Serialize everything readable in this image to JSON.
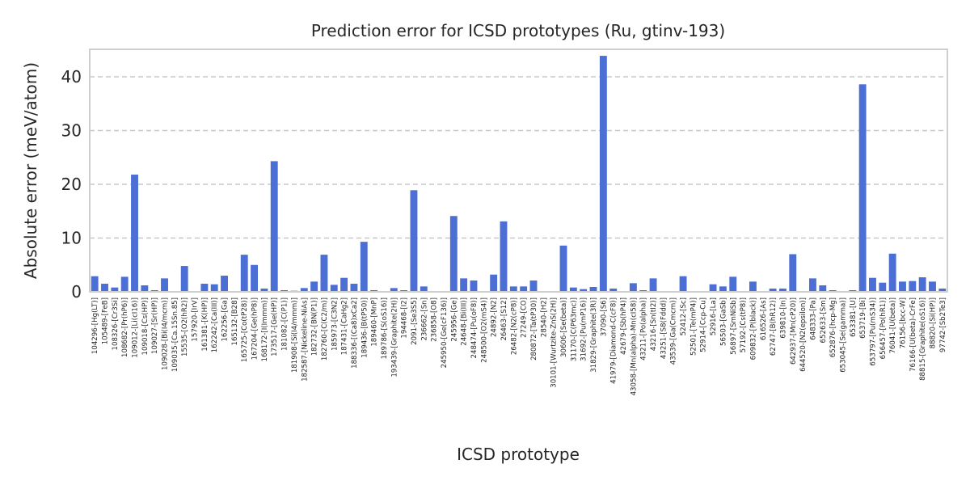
{
  "chart_data": {
    "type": "bar",
    "title": "Prediction error for ICSD prototypes (Ru, gtinv-193)",
    "xlabel": "ICSD prototype",
    "ylabel": "Absolute error (meV/atom)",
    "ylim": [
      0,
      45
    ],
    "yticks": [
      0,
      10,
      20,
      30,
      40
    ],
    "grid": "y-dashed",
    "bar_color": "#4c6fd6",
    "categories": [
      "104296-[Hg(LT)]",
      "105489-[FeB]",
      "108326-[Cr3Si]",
      "108682-[Pr(hP6)]",
      "109012-[Li(cI16)]",
      "109018-[Cs(HP)]",
      "109027-[Sr(HP)]",
      "109028-[Bi(I4/mcm)]",
      "109035-[Ca.15Sn.85]",
      "15535-[O2(hR2)]",
      "157920-[IrV]",
      "161381-[K(HP)]",
      "162242-[Ca(III)]",
      "162256-[Ga]",
      "165132-[B28]",
      "165725-[Co(tP28)]",
      "167204-[Ge(hP8)]",
      "168172-[I(Immm)]",
      "173517-[Ge(HP)]",
      "181082-[C(P1)]",
      "181908-[Si(I4/mmm)]",
      "182587-[Nickeline-NiAs]",
      "182732-[BN(P1)]",
      "182760-[C(C2/m)]",
      "185973-[C3N2]",
      "187431-[CaHg2]",
      "188336-[(Ca8)xCa2]",
      "189436-[B(tP50)]",
      "189460-[MnP]",
      "189786-[S(oS16)]",
      "193439-[Graphite(2H)]",
      "194468-[I2]",
      "2091-[Se3S5]",
      "236662-[Sn]",
      "236858-[O8]",
      "245950-[Ge(cF136)]",
      "245956-[Ge]",
      "24648-[Bi(III)]",
      "248474-[Pu(oF8)]",
      "248500-[O2(mS4)]",
      "24892-[N2]",
      "26463-[S12]",
      "26482-[N2(cP8)]",
      "27249-[CO]",
      "280872-[Ta(tP30)]",
      "28540-[H2]",
      "30101-[Wurtzite-ZnS(2H)]",
      "30606-[Se(beta)]",
      "31170-[C(P63mc)]",
      "31692-[Pu(mP16)]",
      "31829-[Graphite(3R)]",
      "37090-[S6]",
      "41979-[Diamond-C(cF8)]",
      "42679-[Sb(hP4)]",
      "43058-[Mn(alpha)-Mn(cI58)]",
      "43211-[Po(alpha)]",
      "43216-[Sn(tI2)]",
      "43251-[S8(Fddd)]",
      "43539-[Ga(Cmcm)]",
      "52412-[Sc]",
      "52501-[Te(mP4)]",
      "52914-[Ccp-Cu]",
      "52916-[La]",
      "56503-[GaSb]",
      "56897-[SmNiSb]",
      "57192-[Cs(tP8)]",
      "609832-[P(black)]",
      "616526-[As]",
      "62747-[B(hR12)]",
      "639810-[In]",
      "642937-[Mn(cP20)]",
      "644520-[N2(epsilon)]",
      "648333-[Pa]",
      "652633-[Sm]",
      "652876-[hcp-Mg]",
      "653045-[Se(gamma)]",
      "653381-[U]",
      "653719-[Bi]",
      "653797-[Pu(mS34)]",
      "656457-[Po(hR1)]",
      "76041-[U(beta)]",
      "76156-[bcc-W]",
      "76166-[U(beta)-CrFe]",
      "88815-[Graphite(oS16)]",
      "88820-[Si(HP)]",
      "97742-[Sb2Te3]"
    ],
    "values": [
      2.9,
      1.5,
      0.8,
      2.8,
      21.8,
      1.2,
      0.3,
      2.5,
      0.1,
      4.8,
      0.1,
      1.5,
      1.4,
      3.0,
      0.1,
      6.9,
      5.0,
      0.6,
      24.3,
      0.3,
      0.2,
      0.7,
      1.9,
      6.9,
      1.3,
      2.6,
      1.5,
      9.3,
      0.3,
      0.1,
      0.7,
      0.3,
      18.9,
      1.0,
      0.1,
      0.1,
      14.1,
      2.5,
      2.1,
      0.1,
      3.2,
      13.1,
      1.0,
      1.0,
      2.1,
      0.1,
      0.1,
      8.6,
      0.8,
      0.5,
      0.9,
      43.9,
      0.6,
      0.1,
      1.6,
      0.3,
      2.5,
      0.1,
      0.1,
      2.9,
      0.1,
      0.1,
      1.4,
      1.0,
      2.8,
      0.1,
      1.9,
      0.1,
      0.6,
      0.6,
      7.0,
      0.1,
      2.5,
      1.2,
      0.3,
      0.1,
      0.3,
      38.6,
      2.6,
      1.7,
      7.1,
      1.9,
      2.0,
      2.7,
      1.9,
      0.6
    ]
  }
}
